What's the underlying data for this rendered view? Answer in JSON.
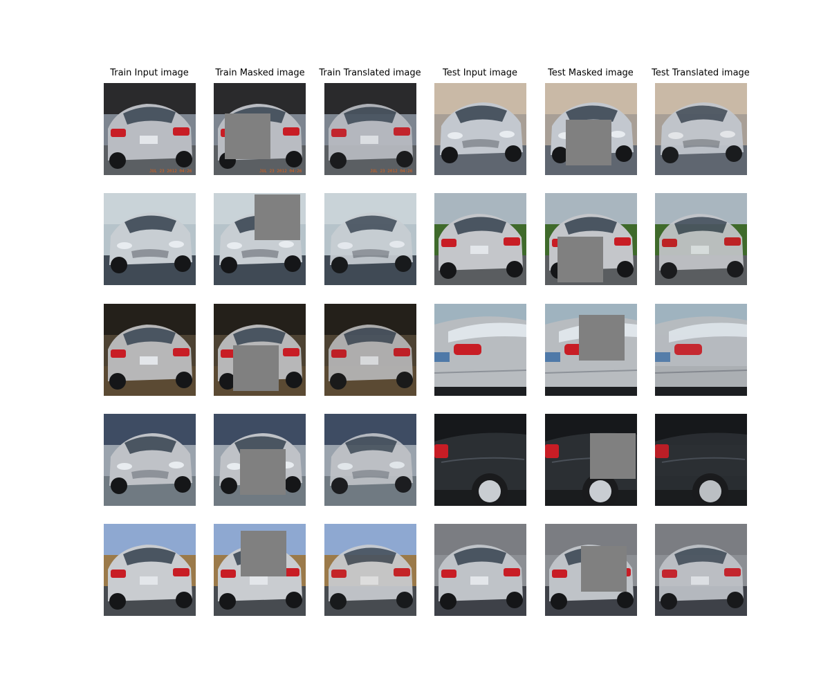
{
  "figure": {
    "column_titles": [
      "Train Input image",
      "Train Masked image",
      "Train Translated image",
      "Test Input image",
      "Test Masked image",
      "Test Translated image"
    ],
    "timestamp_overlay": "JUL 23 2012 04:26",
    "mask_color": "#808080",
    "rows": [
      {
        "scene": "parking-lot",
        "car": "rear-three-quarter",
        "car_color": "#b9bcc2",
        "test_scene": "parking-lot-sunny",
        "test_car": "front-three-quarter",
        "test_car_color": "#c3c8cf"
      },
      {
        "scene": "garage-door",
        "car": "front-three-quarter",
        "car_color": "#c8ced3",
        "test_scene": "suburban-house",
        "test_car": "rear-three-quarter",
        "test_car_color": "#c4c6ca"
      },
      {
        "scene": "gravel-driveway",
        "car": "rear",
        "car_color": "#b7b7b8",
        "test_scene": "close-up-side",
        "test_car": "rear-side",
        "test_car_color": "#b8bcc0"
      },
      {
        "scene": "sidewalk",
        "car": "front",
        "car_color": "#bfc2c7",
        "test_scene": "close-up-dark",
        "test_car": "side-dark",
        "test_car_color": "#2b2f33"
      },
      {
        "scene": "wooden-fence",
        "car": "rear-three-quarter",
        "car_color": "#c9ccd0",
        "test_scene": "houses-driveway",
        "test_car": "rear-three-quarter",
        "test_car_color": "#bfc3c8"
      }
    ]
  }
}
